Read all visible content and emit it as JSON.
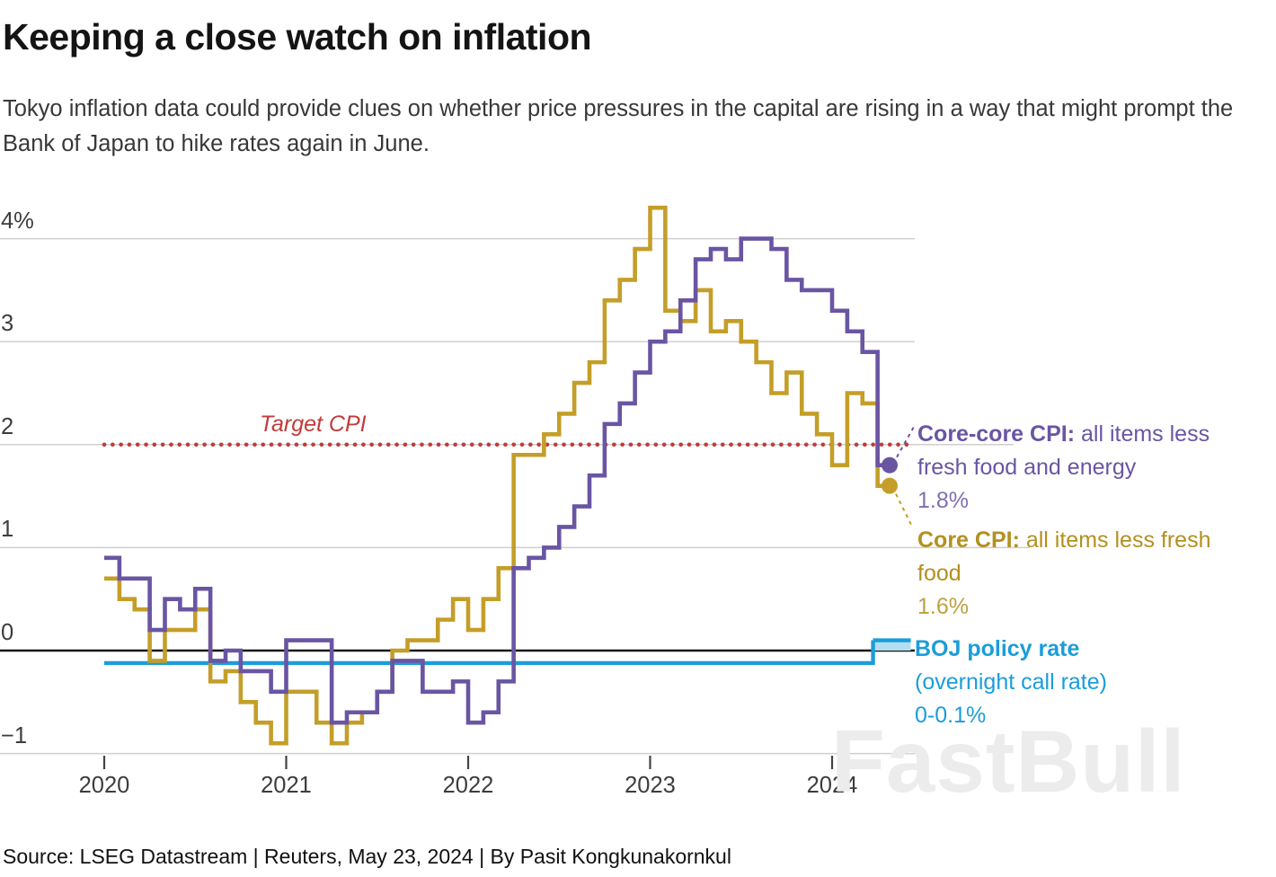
{
  "header": {
    "title": "Keeping a close watch on inflation",
    "subtitle": "Tokyo inflation data could provide clues on whether price pressures in the capital are rising in a way that might prompt the Bank of Japan to hike rates again in June."
  },
  "footer": {
    "source": "Source: LSEG Datastream | Reuters, May 23, 2024 | By Pasit Kongkunakornkul"
  },
  "watermark": {
    "text": "FastBull"
  },
  "chart_data": {
    "type": "line",
    "style": "step",
    "frequency": "monthly",
    "x_start": "2020-01",
    "x_end": "2024-04",
    "grid": true,
    "ylim": [
      -1,
      4.4
    ],
    "y_axis": {
      "ticks": [
        {
          "label": "4%",
          "value": 4
        },
        {
          "label": "3",
          "value": 3
        },
        {
          "label": "2",
          "value": 2
        },
        {
          "label": "1",
          "value": 1
        },
        {
          "label": "0",
          "value": 0
        },
        {
          "label": "−1",
          "value": -1
        }
      ]
    },
    "x_axis": {
      "ticks": [
        {
          "label": "2020",
          "month_index": 0
        },
        {
          "label": "2021",
          "month_index": 12
        },
        {
          "label": "2022",
          "month_index": 24
        },
        {
          "label": "2023",
          "month_index": 36
        },
        {
          "label": "2024",
          "month_index": 48
        }
      ]
    },
    "target_line": {
      "label": "Target CPI",
      "value": 2,
      "color": "#c23b3b"
    },
    "series": [
      {
        "name": "core-core-cpi",
        "label_bold": "Core-core CPI:",
        "label_rest": " all items less fresh food and energy",
        "end_value": 1.8,
        "end_value_label": "1.8%",
        "color": "#6a55a3",
        "values": [
          0.9,
          0.7,
          0.7,
          0.2,
          0.5,
          0.4,
          0.6,
          -0.1,
          0.0,
          -0.2,
          -0.2,
          -0.4,
          0.1,
          0.1,
          0.1,
          -0.7,
          -0.6,
          -0.6,
          -0.4,
          -0.1,
          -0.1,
          -0.4,
          -0.4,
          -0.3,
          -0.7,
          -0.6,
          -0.3,
          0.8,
          0.9,
          1.0,
          1.2,
          1.4,
          1.7,
          2.2,
          2.4,
          2.7,
          3.0,
          3.1,
          3.4,
          3.8,
          3.9,
          3.8,
          4.0,
          4.0,
          3.9,
          3.6,
          3.5,
          3.5,
          3.3,
          3.1,
          2.9,
          1.8
        ]
      },
      {
        "name": "core-cpi",
        "label_bold": "Core CPI:",
        "label_rest": " all items less fresh food",
        "end_value": 1.6,
        "end_value_label": "1.6%",
        "color": "#c49e28",
        "text_color": "#b3901f",
        "values": [
          0.7,
          0.5,
          0.4,
          -0.1,
          0.2,
          0.2,
          0.4,
          -0.3,
          -0.2,
          -0.5,
          -0.7,
          -0.9,
          -0.4,
          -0.4,
          -0.7,
          -0.9,
          -0.7,
          -0.6,
          -0.4,
          0.0,
          0.1,
          0.1,
          0.3,
          0.5,
          0.2,
          0.5,
          0.8,
          1.9,
          1.9,
          2.1,
          2.3,
          2.6,
          2.8,
          3.4,
          3.6,
          3.9,
          4.3,
          3.3,
          3.2,
          3.5,
          3.1,
          3.2,
          3.0,
          2.8,
          2.5,
          2.7,
          2.3,
          2.1,
          1.8,
          2.5,
          2.4,
          1.6
        ]
      }
    ],
    "boj": {
      "label_bold": "BOJ policy rate",
      "label_line2": "(overnight call rate)",
      "value_label": "0-0.1%",
      "rate_before": -0.1,
      "hike_month": "2024-03",
      "band_after": [
        0,
        0.1
      ],
      "color": "#1b9dda",
      "band_fill": "#b3ddf1"
    }
  }
}
